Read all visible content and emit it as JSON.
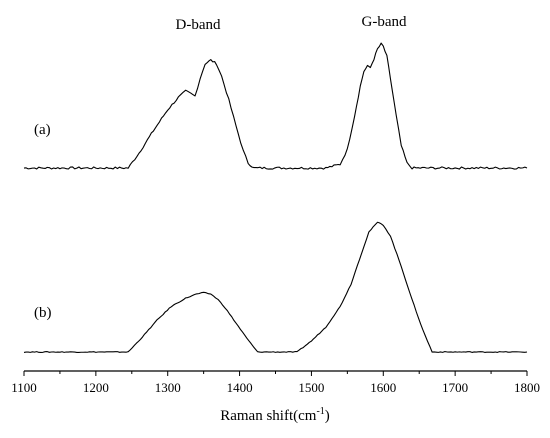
{
  "chart_data": {
    "type": "line",
    "xlabel": "Raman shift(cm",
    "xlabel_sup": "-1",
    "xlabel_suffix": ")",
    "xlim": [
      1100,
      1800
    ],
    "ticks": [
      "1100",
      "1200",
      "1300",
      "1400",
      "1500",
      "1600",
      "1700",
      "1800"
    ],
    "annotations": [
      {
        "text": "D-band",
        "x": 1360
      },
      {
        "text": "G-band",
        "x": 1598
      }
    ],
    "series": [
      {
        "name": "(a)",
        "x": [
          1100,
          1150,
          1200,
          1245,
          1260,
          1280,
          1300,
          1315,
          1325,
          1332,
          1338,
          1345,
          1352,
          1360,
          1368,
          1375,
          1385,
          1395,
          1405,
          1412,
          1420,
          1440,
          1480,
          1520,
          1540,
          1550,
          1560,
          1568,
          1573,
          1578,
          1582,
          1587,
          1592,
          1597,
          1600,
          1605,
          1610,
          1618,
          1625,
          1633,
          1640,
          1660,
          1700,
          1750,
          1800
        ],
        "y": [
          0.0,
          0.0,
          0.0,
          0.0,
          0.12,
          0.3,
          0.47,
          0.57,
          0.62,
          0.6,
          0.58,
          0.72,
          0.84,
          0.87,
          0.84,
          0.74,
          0.55,
          0.34,
          0.14,
          0.04,
          0.0,
          0.0,
          0.0,
          0.0,
          0.03,
          0.15,
          0.42,
          0.66,
          0.78,
          0.82,
          0.81,
          0.88,
          0.96,
          1.0,
          0.98,
          0.9,
          0.72,
          0.42,
          0.18,
          0.04,
          0.0,
          0.0,
          0.0,
          0.0,
          0.0
        ]
      },
      {
        "name": "(b)",
        "x": [
          1100,
          1150,
          1200,
          1245,
          1265,
          1285,
          1305,
          1325,
          1340,
          1350,
          1360,
          1370,
          1380,
          1395,
          1410,
          1425,
          1450,
          1480,
          1500,
          1520,
          1540,
          1555,
          1570,
          1580,
          1592,
          1600,
          1610,
          1625,
          1640,
          1655,
          1668,
          1700,
          1750,
          1800
        ],
        "y": [
          0.0,
          0.0,
          0.0,
          0.0,
          0.11,
          0.23,
          0.33,
          0.39,
          0.42,
          0.43,
          0.42,
          0.38,
          0.32,
          0.21,
          0.1,
          0.0,
          0.0,
          0.0,
          0.08,
          0.18,
          0.33,
          0.49,
          0.72,
          0.87,
          0.94,
          0.92,
          0.84,
          0.62,
          0.38,
          0.16,
          0.0,
          0.0,
          0.0,
          0.0
        ]
      }
    ]
  }
}
